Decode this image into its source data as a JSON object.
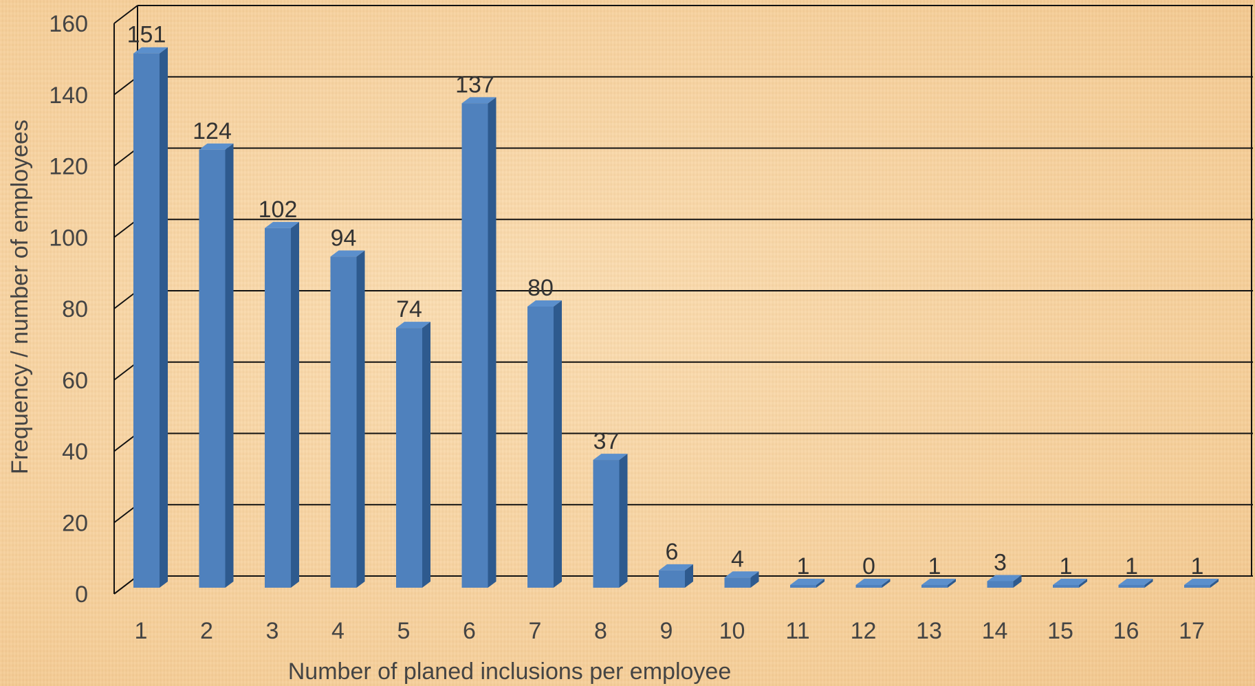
{
  "chart_data": {
    "type": "bar",
    "title": "",
    "xlabel": "Number of planed inclusions per employee",
    "ylabel": "Frequency / number of employees",
    "categories": [
      "1",
      "2",
      "3",
      "4",
      "5",
      "6",
      "7",
      "8",
      "9",
      "10",
      "11",
      "12",
      "13",
      "14",
      "15",
      "16",
      "17"
    ],
    "values": [
      151,
      124,
      102,
      94,
      74,
      137,
      80,
      37,
      6,
      4,
      1,
      0,
      1,
      3,
      1,
      1,
      1
    ],
    "ylim": [
      0,
      160
    ],
    "yticks": [
      "0",
      "20",
      "40",
      "60",
      "80",
      "100",
      "120",
      "140",
      "160"
    ],
    "grid": true,
    "legend": "none",
    "style": "3d-column",
    "colors": {
      "bar_front": "#4F81BD",
      "bar_side": "#2E5A8E",
      "bar_top": "#5B8FCC",
      "background": "#F7D4A2"
    }
  }
}
